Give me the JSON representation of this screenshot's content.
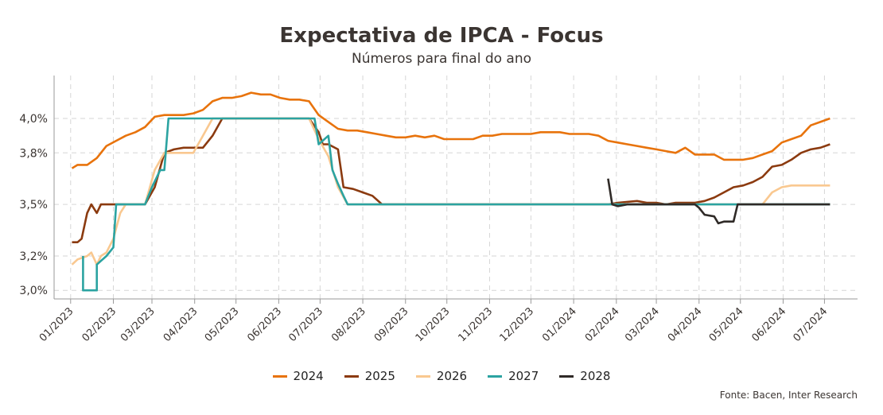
{
  "header": {
    "title": "Expectativa de IPCA - Focus",
    "subtitle": "Números para final do ano",
    "source": "Fonte: Bacen, Inter Research"
  },
  "chart_data": {
    "type": "line",
    "title": "Expectativa de IPCA - Focus",
    "subtitle": "Números para final do ano",
    "xlabel": "",
    "ylabel": "",
    "ylim": [
      2.95,
      4.25
    ],
    "xlim": [
      "2022-12-20",
      "2024-07-25"
    ],
    "y_ticks": [
      "3,0%",
      "3,2%",
      "3,5%",
      "3,8%",
      "4,0%"
    ],
    "y_tick_values": [
      3.0,
      3.2,
      3.5,
      3.8,
      4.0
    ],
    "x_ticks": [
      "01/2023",
      "02/2023",
      "03/2023",
      "04/2023",
      "05/2023",
      "06/2023",
      "07/2023",
      "08/2023",
      "09/2023",
      "10/2023",
      "11/2023",
      "12/2023",
      "01/2024",
      "02/2024",
      "03/2024",
      "04/2024",
      "05/2024",
      "06/2024",
      "07/2024"
    ],
    "x_tick_dates": [
      "2023-01-01",
      "2023-02-01",
      "2023-03-01",
      "2023-04-01",
      "2023-05-01",
      "2023-06-01",
      "2023-07-01",
      "2023-08-01",
      "2023-09-01",
      "2023-10-01",
      "2023-11-01",
      "2023-12-01",
      "2024-01-01",
      "2024-02-01",
      "2024-03-01",
      "2024-04-01",
      "2024-05-01",
      "2024-06-01",
      "2024-07-01"
    ],
    "grid": true,
    "legend_position": "bottom",
    "series": [
      {
        "name": "2024",
        "color": "#e8730c",
        "points": [
          [
            "2023-01-02",
            3.71
          ],
          [
            "2023-01-06",
            3.73
          ],
          [
            "2023-01-13",
            3.73
          ],
          [
            "2023-01-20",
            3.77
          ],
          [
            "2023-01-27",
            3.84
          ],
          [
            "2023-02-03",
            3.87
          ],
          [
            "2023-02-10",
            3.9
          ],
          [
            "2023-02-17",
            3.92
          ],
          [
            "2023-02-24",
            3.95
          ],
          [
            "2023-03-03",
            4.01
          ],
          [
            "2023-03-10",
            4.02
          ],
          [
            "2023-03-17",
            4.02
          ],
          [
            "2023-03-24",
            4.02
          ],
          [
            "2023-03-31",
            4.03
          ],
          [
            "2023-04-07",
            4.05
          ],
          [
            "2023-04-14",
            4.1
          ],
          [
            "2023-04-21",
            4.12
          ],
          [
            "2023-04-28",
            4.12
          ],
          [
            "2023-05-05",
            4.13
          ],
          [
            "2023-05-12",
            4.15
          ],
          [
            "2023-05-19",
            4.14
          ],
          [
            "2023-05-26",
            4.14
          ],
          [
            "2023-06-02",
            4.12
          ],
          [
            "2023-06-09",
            4.11
          ],
          [
            "2023-06-16",
            4.11
          ],
          [
            "2023-06-23",
            4.1
          ],
          [
            "2023-06-30",
            4.02
          ],
          [
            "2023-07-07",
            3.98
          ],
          [
            "2023-07-14",
            3.94
          ],
          [
            "2023-07-21",
            3.93
          ],
          [
            "2023-07-28",
            3.93
          ],
          [
            "2023-08-04",
            3.92
          ],
          [
            "2023-08-11",
            3.91
          ],
          [
            "2023-08-18",
            3.9
          ],
          [
            "2023-08-25",
            3.89
          ],
          [
            "2023-09-01",
            3.89
          ],
          [
            "2023-09-08",
            3.9
          ],
          [
            "2023-09-15",
            3.89
          ],
          [
            "2023-09-22",
            3.9
          ],
          [
            "2023-09-29",
            3.88
          ],
          [
            "2023-10-06",
            3.88
          ],
          [
            "2023-10-13",
            3.88
          ],
          [
            "2023-10-20",
            3.88
          ],
          [
            "2023-10-27",
            3.9
          ],
          [
            "2023-11-03",
            3.9
          ],
          [
            "2023-11-10",
            3.91
          ],
          [
            "2023-11-17",
            3.91
          ],
          [
            "2023-11-24",
            3.91
          ],
          [
            "2023-12-01",
            3.91
          ],
          [
            "2023-12-08",
            3.92
          ],
          [
            "2023-12-15",
            3.92
          ],
          [
            "2023-12-22",
            3.92
          ],
          [
            "2023-12-29",
            3.91
          ],
          [
            "2024-01-05",
            3.91
          ],
          [
            "2024-01-12",
            3.91
          ],
          [
            "2024-01-19",
            3.9
          ],
          [
            "2024-01-26",
            3.87
          ],
          [
            "2024-02-02",
            3.86
          ],
          [
            "2024-02-09",
            3.85
          ],
          [
            "2024-02-16",
            3.84
          ],
          [
            "2024-02-23",
            3.83
          ],
          [
            "2024-03-01",
            3.82
          ],
          [
            "2024-03-08",
            3.81
          ],
          [
            "2024-03-15",
            3.8
          ],
          [
            "2024-03-22",
            3.83
          ],
          [
            "2024-03-29",
            3.79
          ],
          [
            "2024-04-05",
            3.79
          ],
          [
            "2024-04-12",
            3.79
          ],
          [
            "2024-04-19",
            3.76
          ],
          [
            "2024-04-26",
            3.76
          ],
          [
            "2024-05-03",
            3.76
          ],
          [
            "2024-05-10",
            3.77
          ],
          [
            "2024-05-17",
            3.79
          ],
          [
            "2024-05-24",
            3.81
          ],
          [
            "2024-05-31",
            3.86
          ],
          [
            "2024-06-07",
            3.88
          ],
          [
            "2024-06-14",
            3.9
          ],
          [
            "2024-06-21",
            3.96
          ],
          [
            "2024-06-28",
            3.98
          ],
          [
            "2024-07-05",
            4.0
          ]
        ]
      },
      {
        "name": "2025",
        "color": "#8b3a0f",
        "points": [
          [
            "2023-01-02",
            3.28
          ],
          [
            "2023-01-06",
            3.28
          ],
          [
            "2023-01-09",
            3.3
          ],
          [
            "2023-01-13",
            3.45
          ],
          [
            "2023-01-16",
            3.5
          ],
          [
            "2023-01-20",
            3.45
          ],
          [
            "2023-01-23",
            3.5
          ],
          [
            "2023-02-10",
            3.5
          ],
          [
            "2023-02-17",
            3.5
          ],
          [
            "2023-02-24",
            3.5
          ],
          [
            "2023-03-03",
            3.6
          ],
          [
            "2023-03-10",
            3.8
          ],
          [
            "2023-03-17",
            3.82
          ],
          [
            "2023-03-24",
            3.83
          ],
          [
            "2023-03-31",
            3.83
          ],
          [
            "2023-04-07",
            3.83
          ],
          [
            "2023-04-14",
            3.9
          ],
          [
            "2023-04-21",
            4.0
          ],
          [
            "2023-04-28",
            4.0
          ],
          [
            "2023-05-05",
            4.0
          ],
          [
            "2023-05-12",
            4.0
          ],
          [
            "2023-05-19",
            4.0
          ],
          [
            "2023-05-26",
            4.0
          ],
          [
            "2023-06-02",
            4.0
          ],
          [
            "2023-06-09",
            4.0
          ],
          [
            "2023-06-16",
            4.0
          ],
          [
            "2023-06-23",
            4.0
          ],
          [
            "2023-06-30",
            3.92
          ],
          [
            "2023-07-03",
            3.85
          ],
          [
            "2023-07-07",
            3.85
          ],
          [
            "2023-07-14",
            3.82
          ],
          [
            "2023-07-18",
            3.6
          ],
          [
            "2023-07-25",
            3.59
          ],
          [
            "2023-08-01",
            3.57
          ],
          [
            "2023-08-08",
            3.55
          ],
          [
            "2023-08-15",
            3.5
          ],
          [
            "2023-12-29",
            3.5
          ],
          [
            "2024-01-05",
            3.5
          ],
          [
            "2024-01-26",
            3.5
          ],
          [
            "2024-02-02",
            3.51
          ],
          [
            "2024-02-16",
            3.52
          ],
          [
            "2024-02-23",
            3.51
          ],
          [
            "2024-03-01",
            3.51
          ],
          [
            "2024-03-08",
            3.5
          ],
          [
            "2024-03-15",
            3.51
          ],
          [
            "2024-03-22",
            3.51
          ],
          [
            "2024-03-29",
            3.51
          ],
          [
            "2024-04-05",
            3.52
          ],
          [
            "2024-04-12",
            3.54
          ],
          [
            "2024-04-19",
            3.57
          ],
          [
            "2024-04-26",
            3.6
          ],
          [
            "2024-05-03",
            3.61
          ],
          [
            "2024-05-10",
            3.63
          ],
          [
            "2024-05-17",
            3.66
          ],
          [
            "2024-05-24",
            3.72
          ],
          [
            "2024-05-31",
            3.73
          ],
          [
            "2024-06-07",
            3.76
          ],
          [
            "2024-06-14",
            3.8
          ],
          [
            "2024-06-21",
            3.82
          ],
          [
            "2024-06-28",
            3.83
          ],
          [
            "2024-07-05",
            3.85
          ]
        ]
      },
      {
        "name": "2026",
        "color": "#f9c890",
        "points": [
          [
            "2023-01-02",
            3.15
          ],
          [
            "2023-01-06",
            3.18
          ],
          [
            "2023-01-13",
            3.2
          ],
          [
            "2023-01-16",
            3.22
          ],
          [
            "2023-01-20",
            3.15
          ],
          [
            "2023-01-23",
            3.2
          ],
          [
            "2023-01-27",
            3.22
          ],
          [
            "2023-02-01",
            3.3
          ],
          [
            "2023-02-06",
            3.45
          ],
          [
            "2023-02-10",
            3.5
          ],
          [
            "2023-02-17",
            3.5
          ],
          [
            "2023-02-24",
            3.5
          ],
          [
            "2023-03-03",
            3.7
          ],
          [
            "2023-03-10",
            3.8
          ],
          [
            "2023-03-17",
            3.8
          ],
          [
            "2023-03-24",
            3.8
          ],
          [
            "2023-03-31",
            3.8
          ],
          [
            "2023-04-07",
            3.9
          ],
          [
            "2023-04-14",
            4.0
          ],
          [
            "2023-04-21",
            4.0
          ],
          [
            "2023-06-23",
            4.0
          ],
          [
            "2023-06-30",
            3.88
          ],
          [
            "2023-07-07",
            3.78
          ],
          [
            "2023-07-14",
            3.6
          ],
          [
            "2023-07-21",
            3.5
          ],
          [
            "2024-05-17",
            3.5
          ],
          [
            "2024-05-24",
            3.57
          ],
          [
            "2024-05-31",
            3.6
          ],
          [
            "2024-06-07",
            3.61
          ],
          [
            "2024-06-28",
            3.61
          ],
          [
            "2024-07-05",
            3.61
          ]
        ]
      },
      {
        "name": "2027",
        "color": "#2ba3a1",
        "points": [
          [
            "2023-01-10",
            3.2
          ],
          [
            "2023-01-10",
            3.0
          ],
          [
            "2023-01-20",
            3.0
          ],
          [
            "2023-01-20",
            3.15
          ],
          [
            "2023-01-27",
            3.2
          ],
          [
            "2023-02-01",
            3.25
          ],
          [
            "2023-02-03",
            3.5
          ],
          [
            "2023-02-24",
            3.5
          ],
          [
            "2023-03-01",
            3.6
          ],
          [
            "2023-03-07",
            3.7
          ],
          [
            "2023-03-10",
            3.7
          ],
          [
            "2023-03-13",
            4.0
          ],
          [
            "2023-06-27",
            4.0
          ],
          [
            "2023-06-30",
            3.85
          ],
          [
            "2023-07-07",
            3.9
          ],
          [
            "2023-07-10",
            3.7
          ],
          [
            "2023-07-14",
            3.62
          ],
          [
            "2023-07-18",
            3.55
          ],
          [
            "2023-07-21",
            3.5
          ],
          [
            "2024-07-05",
            3.5
          ]
        ]
      },
      {
        "name": "2028",
        "color": "#2f2a27",
        "points": [
          [
            "2024-01-26",
            3.65
          ],
          [
            "2024-01-29",
            3.5
          ],
          [
            "2024-02-02",
            3.49
          ],
          [
            "2024-02-09",
            3.5
          ],
          [
            "2024-03-29",
            3.5
          ],
          [
            "2024-04-01",
            3.48
          ],
          [
            "2024-04-05",
            3.44
          ],
          [
            "2024-04-12",
            3.43
          ],
          [
            "2024-04-15",
            3.39
          ],
          [
            "2024-04-19",
            3.4
          ],
          [
            "2024-04-26",
            3.4
          ],
          [
            "2024-04-29",
            3.5
          ],
          [
            "2024-07-05",
            3.5
          ]
        ]
      }
    ]
  }
}
